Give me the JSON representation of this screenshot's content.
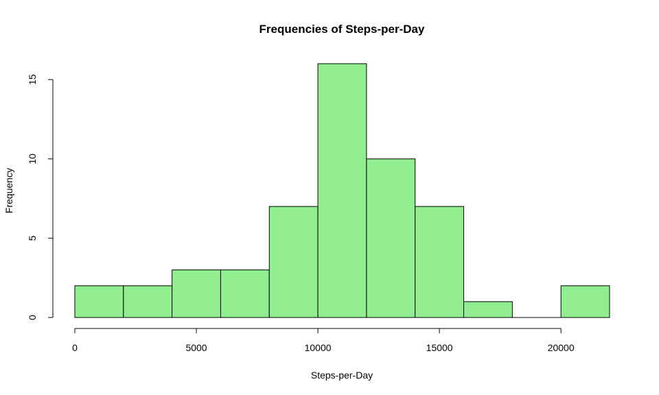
{
  "chart_data": {
    "type": "bar",
    "title": "Frequencies of Steps-per-Day",
    "xlabel": "Steps-per-Day",
    "ylabel": "Frequency",
    "bin_edges": [
      0,
      2000,
      4000,
      6000,
      8000,
      10000,
      12000,
      14000,
      16000,
      18000,
      20000,
      22000
    ],
    "values": [
      2,
      2,
      3,
      3,
      7,
      16,
      10,
      7,
      1,
      0,
      2
    ],
    "xlim": [
      0,
      22000
    ],
    "ylim": [
      0,
      16
    ],
    "x_ticks": [
      0,
      5000,
      10000,
      15000,
      20000
    ],
    "y_ticks": [
      0,
      5,
      10,
      15
    ],
    "bar_color": "#90EE90",
    "grid": false,
    "legend": "none"
  }
}
